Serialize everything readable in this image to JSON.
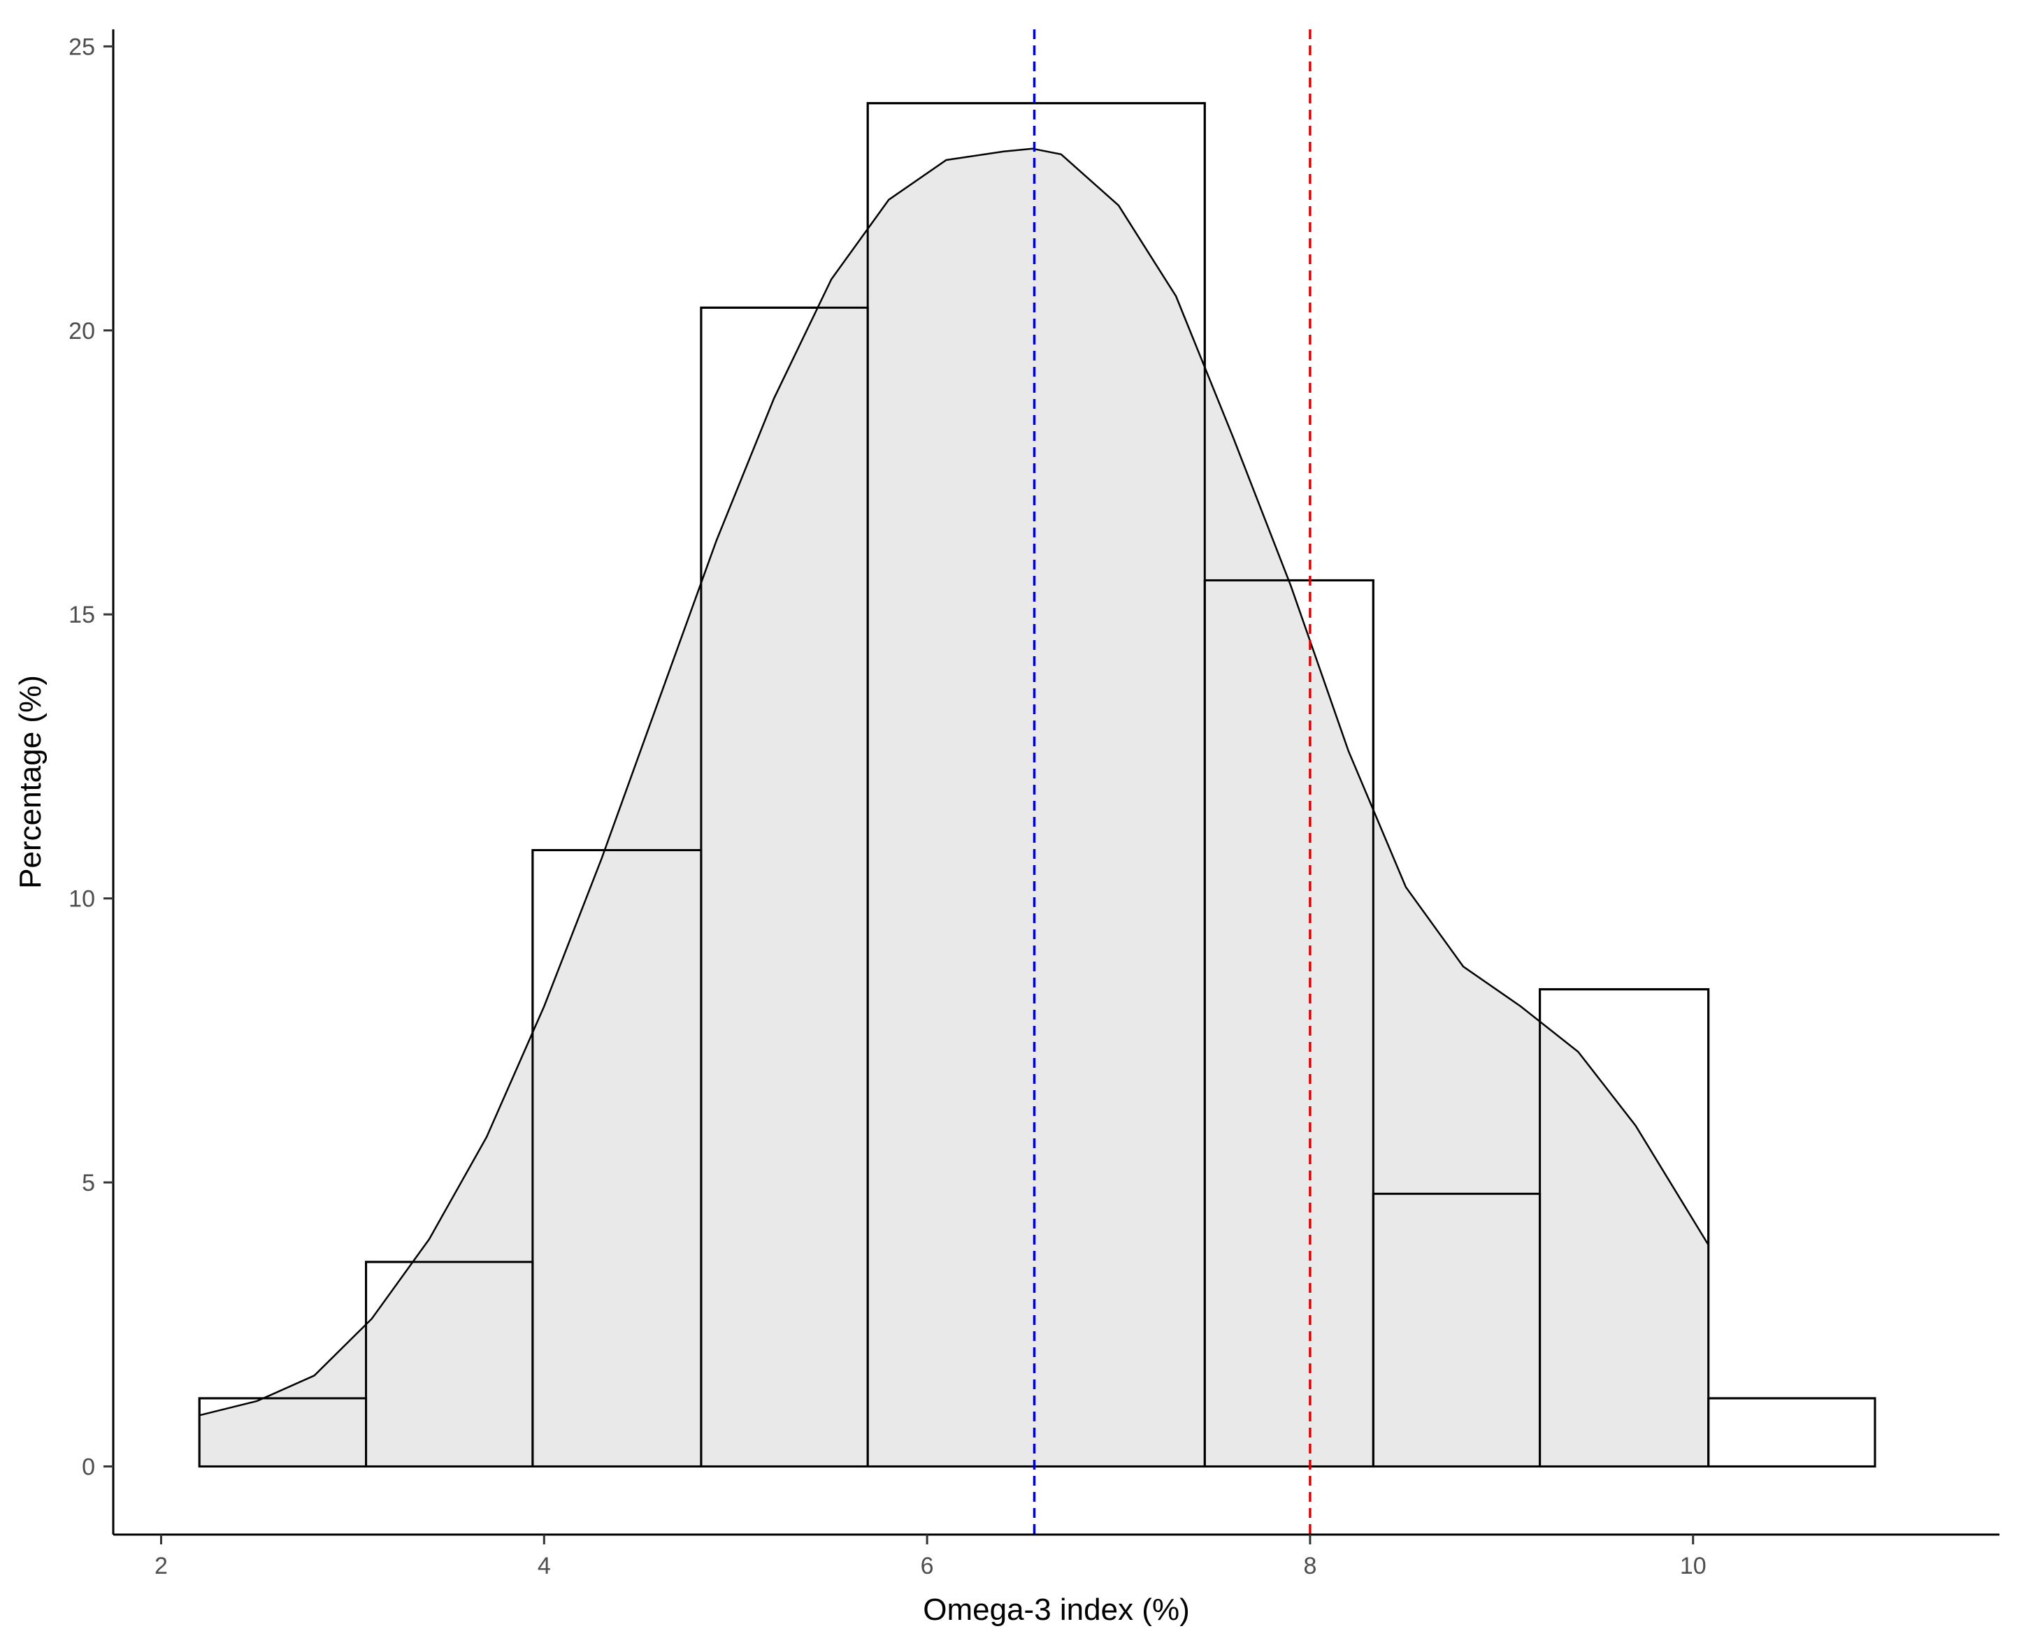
{
  "chart_data": {
    "type": "bar",
    "title": "",
    "xlabel": "Omega-3 index (%)",
    "ylabel": "Percentage (%)",
    "xlim": [
      1.75,
      11.6
    ],
    "ylim": [
      -1.2,
      25.3
    ],
    "xticks": [
      2,
      4,
      6,
      8,
      10
    ],
    "yticks": [
      0,
      5,
      10,
      15,
      20,
      25
    ],
    "grid": false,
    "legend": "none",
    "bins": [
      {
        "x0": 2.2,
        "x1": 3.07,
        "value": 1.2
      },
      {
        "x0": 3.07,
        "x1": 3.94,
        "value": 3.6
      },
      {
        "x0": 3.94,
        "x1": 4.82,
        "value": 10.85
      },
      {
        "x0": 4.82,
        "x1": 5.69,
        "value": 20.4
      },
      {
        "x0": 5.69,
        "x1": 7.45,
        "value": 24.0
      },
      {
        "x0": 7.45,
        "x1": 8.33,
        "value": 15.6
      },
      {
        "x0": 8.33,
        "x1": 9.2,
        "value": 4.8
      },
      {
        "x0": 9.2,
        "x1": 10.08,
        "value": 8.4
      },
      {
        "x0": 10.08,
        "x1": 10.95,
        "value": 1.2
      }
    ],
    "density_curve": {
      "x": [
        2.2,
        2.5,
        2.8,
        3.1,
        3.4,
        3.7,
        4.0,
        4.3,
        4.6,
        4.9,
        5.2,
        5.5,
        5.8,
        6.1,
        6.4,
        6.55,
        6.7,
        7.0,
        7.3,
        7.6,
        7.9,
        8.2,
        8.5,
        8.8,
        9.1,
        9.4,
        9.7,
        10.08
      ],
      "y": [
        0.9,
        1.15,
        1.6,
        2.6,
        4.0,
        5.8,
        8.1,
        10.7,
        13.5,
        16.3,
        18.8,
        20.9,
        22.3,
        23.0,
        23.15,
        23.2,
        23.1,
        22.2,
        20.6,
        18.1,
        15.5,
        12.6,
        10.2,
        8.8,
        8.1,
        7.3,
        6.0,
        3.9
      ],
      "fill": "#e9e9e9"
    },
    "reference_lines": [
      {
        "x": 6.56,
        "color": "#0000cc",
        "style": "dashed"
      },
      {
        "x": 8.0,
        "color": "#e00000",
        "style": "dashed"
      }
    ],
    "colors": {
      "bar_fill": "#ffffff",
      "bar_stroke": "#000000",
      "axis": "#000000"
    }
  }
}
